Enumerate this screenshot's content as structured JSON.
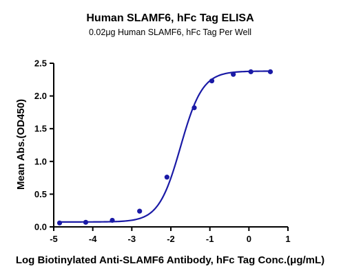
{
  "chart_data": {
    "type": "scatter",
    "title": "Human SLAMF6, hFc Tag ELISA",
    "subtitle": "0.02μg Human SLAMF6, hFc Tag Per Well",
    "xlabel": "Log Biotinylated Anti-SLAMF6 Antibody, hFc Tag Conc.(μg/mL)",
    "ylabel": "Mean Abs.(OD450)",
    "xlim": [
      -5,
      1
    ],
    "ylim": [
      0,
      2.5
    ],
    "x_ticks": [
      "-5",
      "-4",
      "-3",
      "-2",
      "-1",
      "0",
      "1"
    ],
    "y_ticks": [
      "0.0",
      "0.5",
      "1.0",
      "1.5",
      "2.0",
      "2.5"
    ],
    "grid": false,
    "series": [
      {
        "x": [
          -4.85,
          -4.18,
          -3.5,
          -2.8,
          -2.1,
          -1.4,
          -0.95,
          -0.4,
          0.05,
          0.55
        ],
        "y": [
          0.06,
          0.07,
          0.1,
          0.24,
          0.76,
          1.82,
          2.23,
          2.33,
          2.37,
          2.37
        ]
      }
    ],
    "fit": {
      "model": "4PL",
      "bottom": 0.075,
      "top": 2.38,
      "logEC50": -1.75,
      "hill": 1.55
    },
    "colors": {
      "series": "#1a1aa6",
      "axis": "#000000"
    }
  }
}
